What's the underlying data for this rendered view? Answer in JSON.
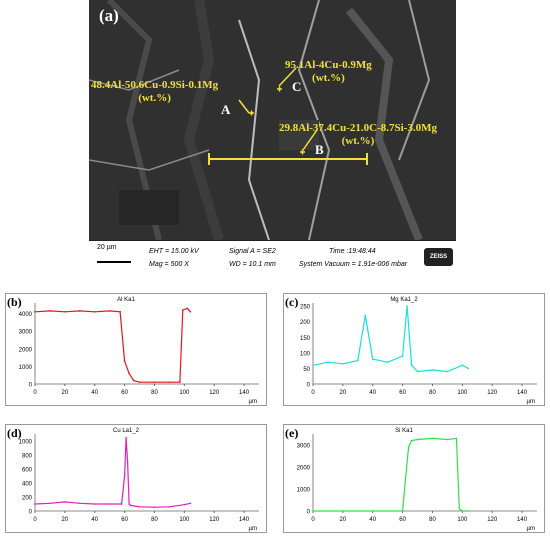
{
  "micrograph": {
    "panel_label": "(a)",
    "annotation_A": {
      "line1": "48.4Al-50.6Cu-0.9Si-0.1Mg",
      "line2": "(wt.%)"
    },
    "annotation_C": {
      "line1": "95.1Al-4Cu-0.9Mg",
      "line2": "(wt.%)"
    },
    "annotation_B": {
      "line1": "29.8Al-37.4Cu-21.0C-8.7Si-3.0Mg",
      "line2": "(wt.%)"
    },
    "point_A": "A",
    "point_B": "B",
    "point_C": "C",
    "scale_bar": "20 µm",
    "eht": "EHT = 15.00 kV",
    "mag": "Mag =    500 X",
    "signal": "Signal A = SE2",
    "wd": "WD = 10.1 mm",
    "time": "Time :19:48:44",
    "vacuum": "System Vacuum = 1.91e-006 mbar",
    "brand": "ZEISS"
  },
  "plots": [
    {
      "tag": "(b)",
      "title": "Al Ka1",
      "color": "#e8141e",
      "yticks": [
        0,
        1000,
        2000,
        3000,
        4000
      ],
      "xunit": "µm"
    },
    {
      "tag": "(c)",
      "title": "Mg Ka1_2",
      "color": "#18e0dc",
      "yticks": [
        0,
        50,
        100,
        150,
        200,
        250
      ],
      "xunit": "µm"
    },
    {
      "tag": "(d)",
      "title": "Cu La1_2",
      "color": "#e020b4",
      "yticks": [
        0,
        200,
        400,
        600,
        800,
        1000
      ],
      "xunit": "µm"
    },
    {
      "tag": "(e)",
      "title": "Si Ka1",
      "color": "#2ee04a",
      "yticks": [
        0,
        1000,
        2000,
        3000
      ],
      "xunit": "µm"
    }
  ],
  "xticks": [
    0,
    20,
    40,
    60,
    80,
    100,
    120,
    140
  ],
  "chart_data": [
    {
      "type": "line",
      "title": "Al Ka1",
      "ylim": [
        0,
        4600
      ],
      "xlim": [
        0,
        150
      ],
      "series": [
        {
          "x": [
            0,
            10,
            20,
            30,
            40,
            50,
            57,
            60,
            63,
            66,
            70,
            80,
            90,
            97,
            99,
            102,
            104
          ],
          "y": [
            4100,
            4150,
            4100,
            4150,
            4100,
            4150,
            4100,
            1300,
            600,
            200,
            100,
            100,
            100,
            100,
            4200,
            4300,
            4100
          ]
        }
      ]
    },
    {
      "type": "line",
      "title": "Mg Ka1_2",
      "ylim": [
        0,
        260
      ],
      "xlim": [
        0,
        150
      ],
      "series": [
        {
          "x": [
            0,
            10,
            20,
            30,
            35,
            40,
            50,
            60,
            63,
            66,
            70,
            80,
            90,
            100,
            104
          ],
          "y": [
            60,
            70,
            65,
            75,
            220,
            80,
            70,
            90,
            250,
            60,
            40,
            45,
            40,
            60,
            50
          ]
        }
      ]
    },
    {
      "type": "line",
      "title": "Cu La1_2",
      "ylim": [
        0,
        1100
      ],
      "xlim": [
        0,
        150
      ],
      "series": [
        {
          "x": [
            0,
            10,
            20,
            30,
            40,
            50,
            58,
            60,
            61,
            62,
            63,
            64,
            70,
            80,
            90,
            100,
            104
          ],
          "y": [
            100,
            110,
            130,
            110,
            100,
            100,
            100,
            500,
            1050,
            700,
            100,
            80,
            60,
            55,
            60,
            90,
            110
          ]
        }
      ]
    },
    {
      "type": "line",
      "title": "Si Ka1",
      "ylim": [
        0,
        3500
      ],
      "xlim": [
        0,
        150
      ],
      "series": [
        {
          "x": [
            0,
            20,
            40,
            60,
            62,
            64,
            66,
            70,
            80,
            90,
            96,
            98,
            100,
            104
          ],
          "y": [
            0,
            0,
            0,
            0,
            1500,
            2900,
            3200,
            3250,
            3300,
            3250,
            3300,
            100,
            0,
            0
          ]
        }
      ]
    }
  ]
}
